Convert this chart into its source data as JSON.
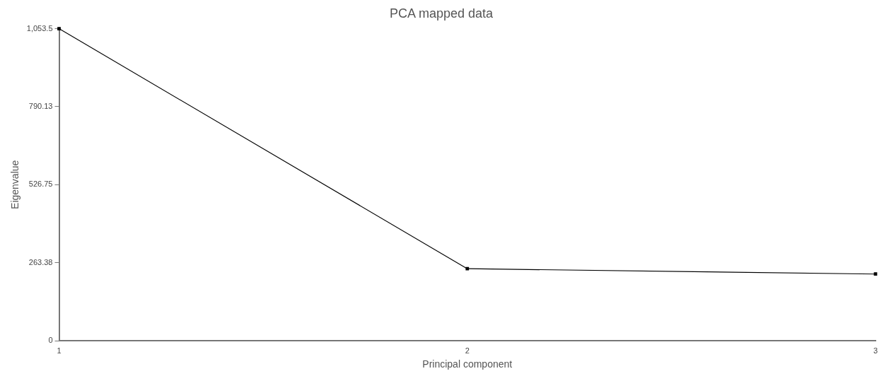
{
  "chart_data": {
    "type": "line",
    "title": "PCA mapped data",
    "xlabel": "Principal component",
    "ylabel": "Eigenvalue",
    "x": [
      1,
      2,
      3
    ],
    "series": [
      {
        "color": "#000000",
        "values": [
          1053.5,
          243,
          225
        ]
      }
    ],
    "xlim": [
      1,
      3
    ],
    "xticks": [
      1,
      2,
      3
    ],
    "ylim": [
      0,
      1053.5
    ],
    "yticks": [
      0,
      263.38,
      526.75,
      790.13,
      {
        "value": 1053.5,
        "label": "1,053.5"
      }
    ],
    "grid": false,
    "legend": false,
    "marker": "square",
    "line_style": "solid"
  }
}
